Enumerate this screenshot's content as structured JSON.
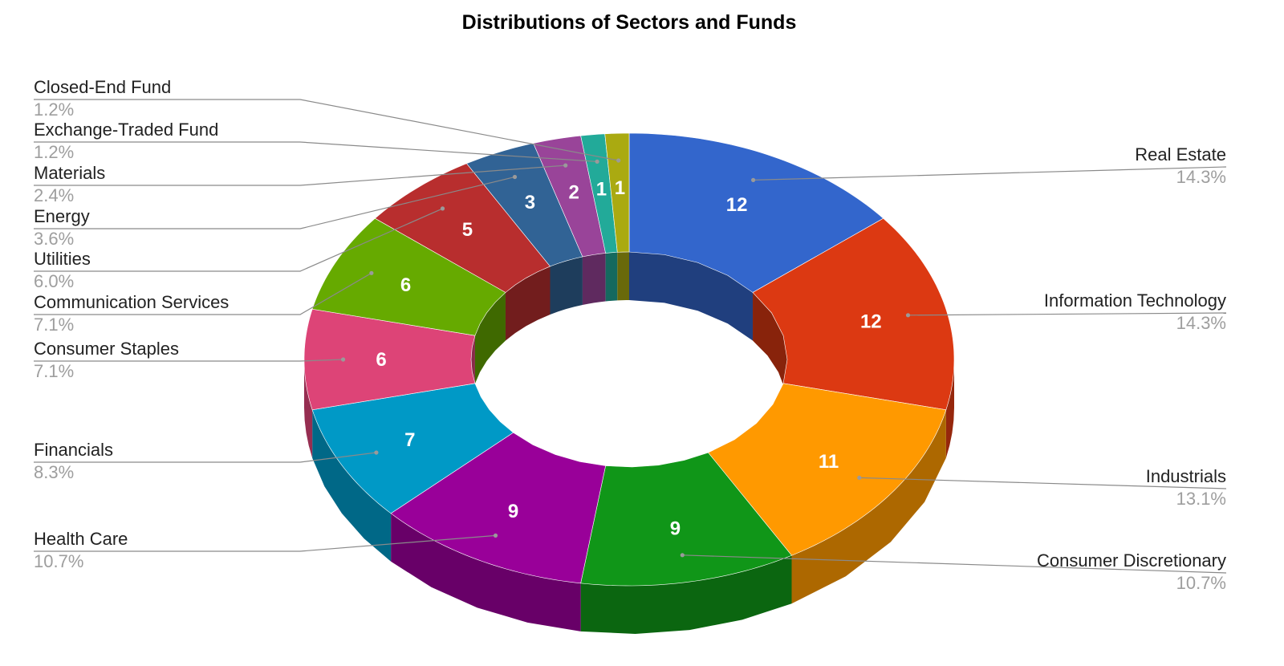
{
  "chart_data": {
    "type": "pie",
    "title": "Distributions of Sectors and Funds",
    "categories": [
      "Real Estate",
      "Information Technology",
      "Industrials",
      "Consumer Discretionary",
      "Health Care",
      "Financials",
      "Consumer Staples",
      "Communication Services",
      "Utilities",
      "Energy",
      "Materials",
      "Exchange-Traded Fund",
      "Closed-End Fund"
    ],
    "values": [
      12,
      12,
      11,
      9,
      9,
      7,
      6,
      6,
      5,
      3,
      2,
      1,
      1
    ],
    "percent_labels": [
      "14.3%",
      "14.3%",
      "13.1%",
      "10.7%",
      "10.7%",
      "8.3%",
      "7.1%",
      "7.1%",
      "6.0%",
      "3.6%",
      "2.4%",
      "1.2%",
      "1.2%"
    ],
    "colors": [
      "#3366cc",
      "#dc3912",
      "#ff9900",
      "#109618",
      "#990099",
      "#0099c6",
      "#dd4477",
      "#66aa00",
      "#b82e2e",
      "#316395",
      "#994499",
      "#22aa99",
      "#aaaa11"
    ],
    "donut": true,
    "three_d": true
  }
}
